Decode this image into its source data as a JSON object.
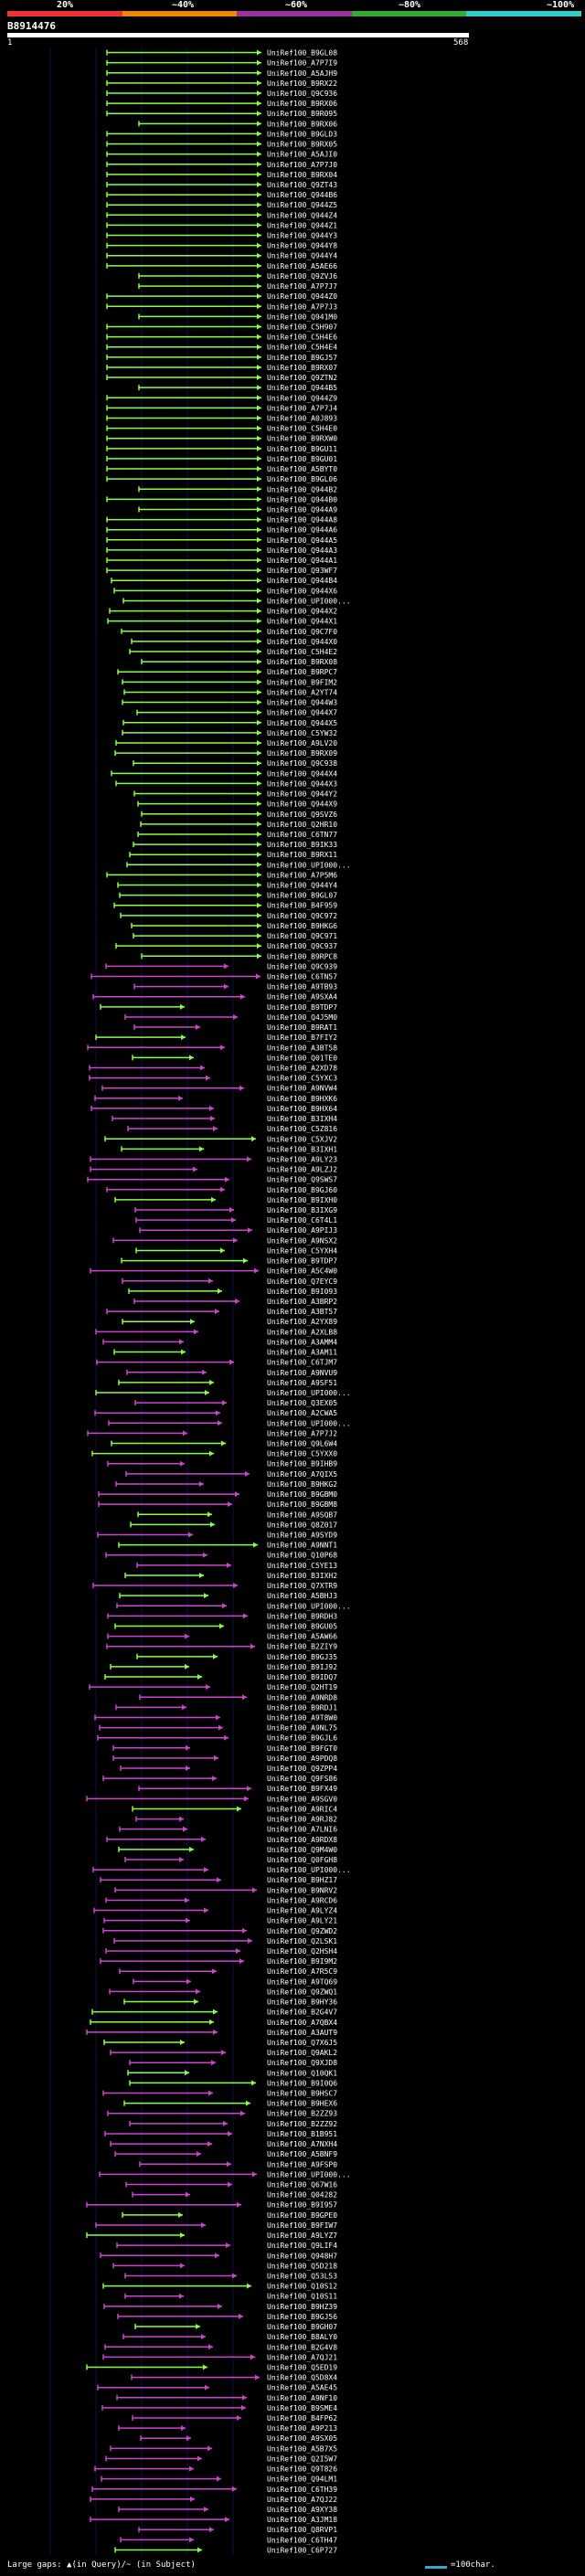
{
  "scale": {
    "labels": [
      "20%",
      "~40%",
      "~60%",
      "~80%",
      "~100%"
    ],
    "colors": [
      "#e33",
      "#e80",
      "#939",
      "#3a3",
      "#3cc"
    ]
  },
  "query": {
    "id": "B8914476",
    "start": "1",
    "end": "568"
  },
  "colors": {
    "green": "#8f4",
    "magenta": "#c4c",
    "grid": "#114",
    "bg": "#000",
    "text": "#fff"
  },
  "hits": [
    "UniRef100_B9GL08",
    "UniRef100_A7P7I9",
    "UniRef100_A5AJH9",
    "UniRef100_B9RX22",
    "UniRef100_Q9C936",
    "UniRef100_B9RX06",
    "UniRef100_B9R095",
    "UniRef100_B9RX06",
    "UniRef100_B9GLD3",
    "UniRef100_B9RX05",
    "UniRef100_A5AJI0",
    "UniRef100_A7P7J0",
    "UniRef100_B9RX04",
    "UniRef100_Q9ZT43",
    "UniRef100_Q944B6",
    "UniRef100_Q944Z5",
    "UniRef100_Q944Z4",
    "UniRef100_Q944Z1",
    "UniRef100_Q944Y3",
    "UniRef100_Q944Y8",
    "UniRef100_Q944Y4",
    "UniRef100_A5AE66",
    "UniRef100_Q9ZVJ6",
    "UniRef100_A7P7J7",
    "UniRef100_Q944Z0",
    "UniRef100_A7P7J3",
    "UniRef100_Q941M0",
    "UniRef100_C5H907",
    "UniRef100_C5H4E6",
    "UniRef100_C5H4E4",
    "UniRef100_B9GJ57",
    "UniRef100_B9RX07",
    "UniRef100_Q9ZTN2",
    "UniRef100_Q944B5",
    "UniRef100_Q944Z9",
    "UniRef100_A7P7J4",
    "UniRef100_A0J893",
    "UniRef100_C5H4E0",
    "UniRef100_B9RXW0",
    "UniRef100_B9GU11",
    "UniRef100_B9GU01",
    "UniRef100_A5BYT0",
    "UniRef100_B9GL06",
    "UniRef100_Q944B2",
    "UniRef100_Q944B0",
    "UniRef100_Q944A9",
    "UniRef100_Q944A8",
    "UniRef100_Q944A6",
    "UniRef100_Q944A5",
    "UniRef100_Q944A3",
    "UniRef100_Q944A1",
    "UniRef100_Q93WF7",
    "UniRef100_Q944B4",
    "UniRef100_Q944X6",
    "UniRef100_UPI000...",
    "UniRef100_Q944X2",
    "UniRef100_Q944X1",
    "UniRef100_Q9C7F0",
    "UniRef100_Q944X0",
    "UniRef100_C5H4E2",
    "UniRef100_B9RX08",
    "UniRef100_B9RPC7",
    "UniRef100_B9FIM2",
    "UniRef100_A2YT74",
    "UniRef100_Q944W3",
    "UniRef100_Q944X7",
    "UniRef100_Q944X5",
    "UniRef100_C5YW32",
    "UniRef100_A9LV20",
    "UniRef100_B9RX09",
    "UniRef100_Q9C938",
    "UniRef100_Q944X4",
    "UniRef100_Q944X3",
    "UniRef100_Q944Y2",
    "UniRef100_Q944X9",
    "UniRef100_Q9SVZ6",
    "UniRef100_Q2HR10",
    "UniRef100_C6TN77",
    "UniRef100_B9IK33",
    "UniRef100_B9RX11",
    "UniRef100_UPI000...",
    "UniRef100_A7P5M6",
    "UniRef100_Q944Y4",
    "UniRef100_B9GL07",
    "UniRef100_B4F959",
    "UniRef100_Q9C972",
    "UniRef100_B9HKG6",
    "UniRef100_Q9C971",
    "UniRef100_Q9C937",
    "UniRef100_B9RPC8",
    "UniRef100_Q9C939",
    "UniRef100_C6TN57",
    "UniRef100_A9TB93",
    "UniRef100_A9SXA4",
    "UniRef100_B9TDP7",
    "UniRef100_Q4J5M0",
    "UniRef100_B9RAT1",
    "UniRef100_B7FIY2",
    "UniRef100_A3BT58",
    "UniRef100_Q01TE0",
    "UniRef100_A2XD78",
    "UniRef100_C5YXC3",
    "UniRef100_A9NVW4",
    "UniRef100_B9HXK6",
    "UniRef100_B9HX64",
    "UniRef100_B3IXH4",
    "UniRef100_C5Z816",
    "UniRef100_C5XJV2",
    "UniRef100_B3IXH1",
    "UniRef100_A9LY23",
    "UniRef100_A9LZJ2",
    "UniRef100_Q9SWS7",
    "UniRef100_B9GJ60",
    "UniRef100_B9IXH0",
    "UniRef100_B3IXG9",
    "UniRef100_C6T4L1",
    "UniRef100_A9PIJ3",
    "UniRef100_A9NSX2",
    "UniRef100_C5YXH4",
    "UniRef100_B9TDP7",
    "UniRef100_A5C4W0",
    "UniRef100_Q7EYC9",
    "UniRef100_B9I093",
    "UniRef100_A3BRP2",
    "UniRef100_A3BT57",
    "UniRef100_A2YX89",
    "UniRef100_A2XLB8",
    "UniRef100_A3AMM4",
    "UniRef100_A3AM11",
    "UniRef100_C6TJM7",
    "UniRef100_A9NVU9",
    "UniRef100_A9SF51",
    "UniRef100_UPI000...",
    "UniRef100_Q3EX05",
    "UniRef100_A2CWA5",
    "UniRef100_UPI000...",
    "UniRef100_A7P7J2",
    "UniRef100_Q9L6W4",
    "UniRef100_C5YXX0",
    "UniRef100_B9IHB9",
    "UniRef100_A7QIX5",
    "UniRef100_B9HKG2",
    "UniRef100_B9GBM0",
    "UniRef100_B9GBM8",
    "UniRef100_A9SQB7",
    "UniRef100_Q8Z017",
    "UniRef100_A9SYD9",
    "UniRef100_A9NNT1",
    "UniRef100_Q10P68",
    "UniRef100_C5YE13",
    "UniRef100_B3IXH2",
    "UniRef100_Q7XTR9",
    "UniRef100_A5BHJ3",
    "UniRef100_UPI000...",
    "UniRef100_B9RDH3",
    "UniRef100_B9GU05",
    "UniRef100_A5AW66",
    "UniRef100_B2ZIY9",
    "UniRef100_B9GJ35",
    "UniRef100_B9IJ92",
    "UniRef100_B9IDQ7",
    "UniRef100_Q2HT19",
    "UniRef100_A9NRD8",
    "UniRef100_B9RDJ1",
    "UniRef100_A9T8W0",
    "UniRef100_A9NL75",
    "UniRef100_B9GJL6",
    "UniRef100_B9FGT0",
    "UniRef100_A9PDQ8",
    "UniRef100_Q9ZPP4",
    "UniRef100_Q9FS86",
    "UniRef100_B9FX49",
    "UniRef100_A9SGV0",
    "UniRef100_A9RIC4",
    "UniRef100_A9RJ82",
    "UniRef100_A7LNI6",
    "UniRef100_A9RDX8",
    "UniRef100_Q9M4W0",
    "UniRef100_Q0FGH8",
    "UniRef100_UPI000...",
    "UniRef100_B9HZ17",
    "UniRef100_B9NRV2",
    "UniRef100_A9RCD6",
    "UniRef100_A9LYZ4",
    "UniRef100_A9LY21",
    "UniRef100_Q9ZWD2",
    "UniRef100_Q2LSK1",
    "UniRef100_Q2HSH4",
    "UniRef100_B9I9M2",
    "UniRef100_A7R5C9",
    "UniRef100_A9TQ69",
    "UniRef100_Q9ZWQ1",
    "UniRef100_B9HY36",
    "UniRef100_B2G4V7",
    "UniRef100_A7QBX4",
    "UniRef100_A3AUT9",
    "UniRef100_Q7X6J5",
    "UniRef100_Q9AKL2",
    "UniRef100_Q9XJD8",
    "UniRef100_Q10QK1",
    "UniRef100_B9I0Q6",
    "UniRef100_B9HSC7",
    "UniRef100_B9HEX6",
    "UniRef100_B2ZZ93",
    "UniRef100_B2ZZ92",
    "UniRef100_B1B951",
    "UniRef100_A7NXH4",
    "UniRef100_A5BNF9",
    "UniRef100_A9FSP0",
    "UniRef100_UPI000...",
    "UniRef100_Q67W16",
    "UniRef100_Q04282",
    "UniRef100_B9I957",
    "UniRef100_B9GPE0",
    "UniRef100_B9FIW7",
    "UniRef100_A9LYZ7",
    "UniRef100_Q9LIF4",
    "UniRef100_Q948H7",
    "UniRef100_Q5D218",
    "UniRef100_Q53L53",
    "UniRef100_Q10S12",
    "UniRef100_Q10S11",
    "UniRef100_B9HZ39",
    "UniRef100_B9GJ56",
    "UniRef100_B9GH07",
    "UniRef100_B8ALY0",
    "UniRef100_B2G4V8",
    "UniRef100_A7QJ21",
    "UniRef100_Q5ED19",
    "UniRef100_Q5D8X4",
    "UniRef100_A5AE45",
    "UniRef100_A9NF10",
    "UniRef100_B9SME4",
    "UniRef100_B4FP62",
    "UniRef100_A9P213",
    "UniRef100_A9SX05",
    "UniRef100_A5B7X5",
    "UniRef100_Q2I5W7",
    "UniRef100_Q9T826",
    "UniRef100_Q94LM1",
    "UniRef100_C6TH39",
    "UniRef100_A7QJ22",
    "UniRef100_A9XY38",
    "UniRef100_A3JM18",
    "UniRef100_Q8RVP1",
    "UniRef100_C6TH47",
    "UniRef100_C6P727"
  ],
  "footer": {
    "text": "Large gaps: ▲(in Query)/~ (in Subject)",
    "legend": "=100char."
  }
}
